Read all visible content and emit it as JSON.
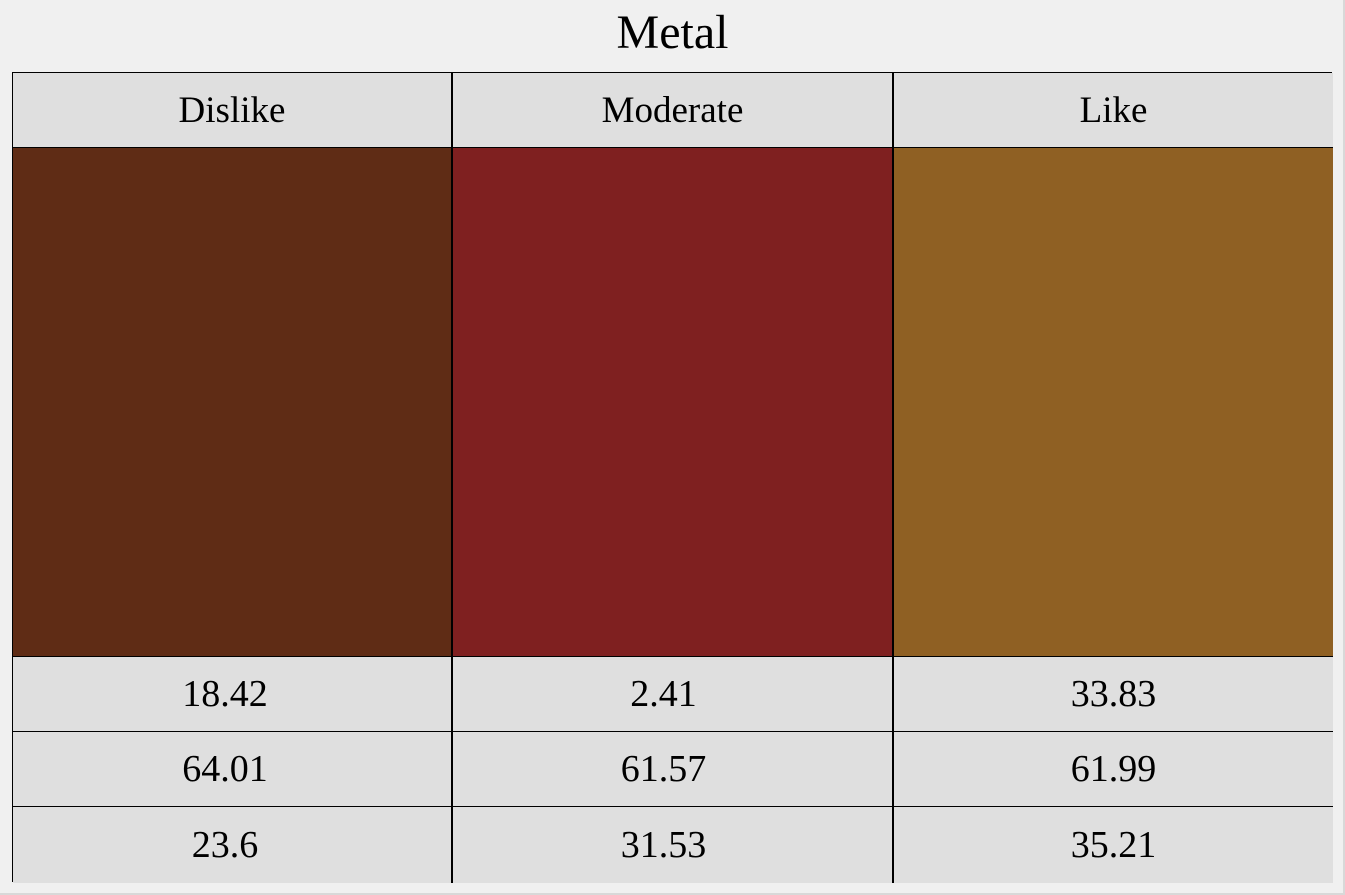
{
  "chart_data": {
    "type": "table",
    "title": "Metal",
    "columns": [
      {
        "label": "Dislike",
        "color": "#5f2c15",
        "values": [
          "18.42",
          "64.01",
          "23.6"
        ]
      },
      {
        "label": "Moderate",
        "color": "#7f2020",
        "values": [
          "2.41",
          "61.57",
          "31.53"
        ]
      },
      {
        "label": "Like",
        "color": "#8f6023",
        "values": [
          "33.83",
          "61.99",
          "35.21"
        ]
      }
    ]
  }
}
